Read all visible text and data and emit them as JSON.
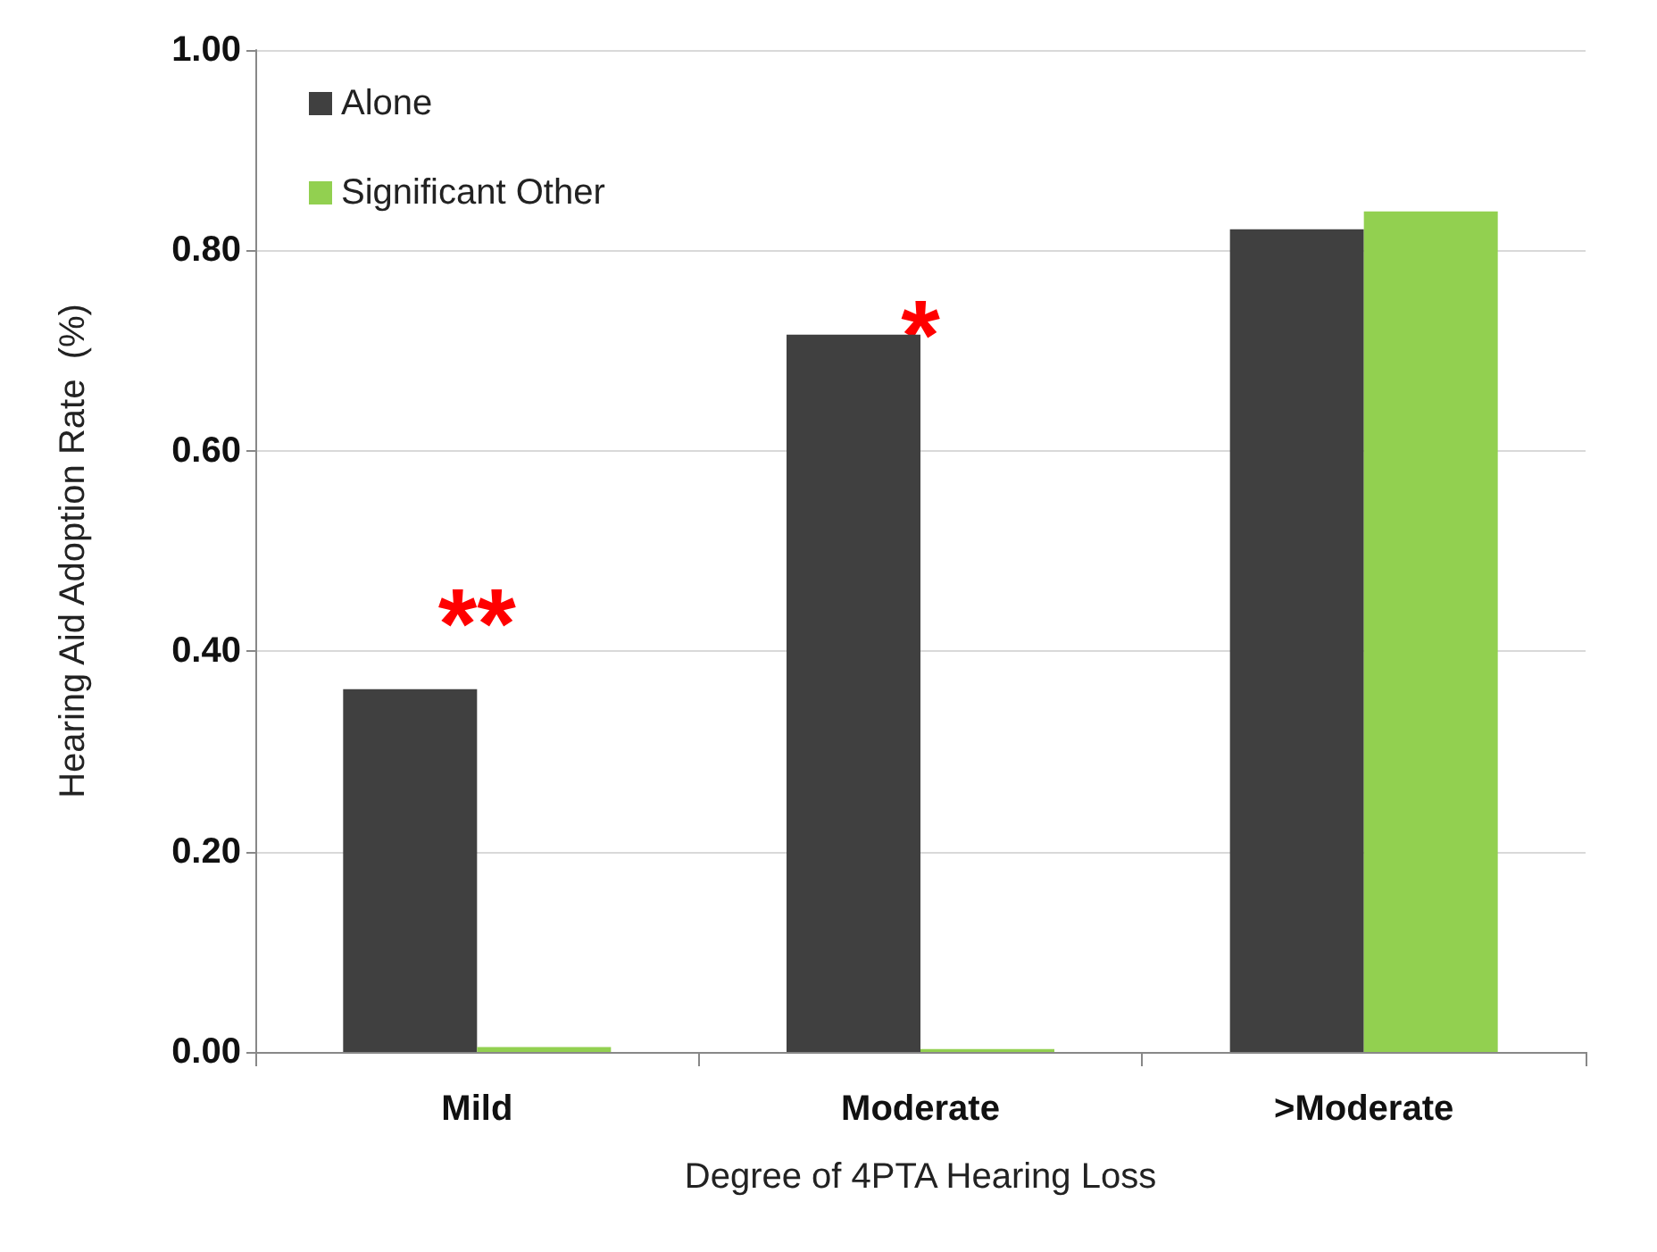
{
  "chart_data": {
    "type": "bar",
    "xlabel": "Degree of 4PTA Hearing Loss",
    "ylabel": "Hearing Aid Adoption Rate  (%)",
    "categories": [
      "Mild",
      "Moderate",
      ">Moderate"
    ],
    "series": [
      {
        "name": "Alone",
        "color": "#404040",
        "values": [
          0.362,
          0.716,
          0.821
        ]
      },
      {
        "name": "Significant Other",
        "color": "#92d050",
        "values": [
          0.005,
          0.003,
          0.839
        ]
      }
    ],
    "ylim": [
      0,
      1
    ],
    "yticks": [
      {
        "value": 0,
        "label": "0.00"
      },
      {
        "value": 0.2,
        "label": "0.20"
      },
      {
        "value": 0.4,
        "label": "0.40"
      },
      {
        "value": 0.6,
        "label": "0.60"
      },
      {
        "value": 0.8,
        "label": "0.80"
      },
      {
        "value": 1,
        "label": "1.00"
      }
    ],
    "grid": "y",
    "legend": "top left",
    "annotations": [
      "**",
      "*"
    ]
  }
}
